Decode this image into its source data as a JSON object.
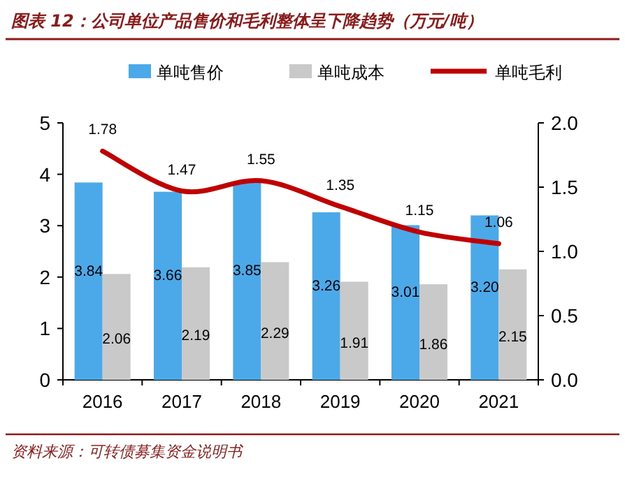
{
  "chart_data": {
    "type": "bar",
    "title": "图表 12：公司单位产品售价和毛利整体呈下降趋势（万元/吨）",
    "categories": [
      "2016",
      "2017",
      "2018",
      "2019",
      "2020",
      "2021"
    ],
    "series": [
      {
        "name": "单吨售价",
        "color": "#4ba9ea",
        "values": [
          3.84,
          3.66,
          3.85,
          3.26,
          3.01,
          3.2
        ],
        "value_labels": [
          "3.84",
          "3.66",
          "3.85",
          "3.26",
          "3.01",
          "3.20"
        ]
      },
      {
        "name": "单吨成本",
        "color": "#c9c9c9",
        "values": [
          2.06,
          2.19,
          2.29,
          1.91,
          1.86,
          2.15
        ],
        "value_labels": [
          "2.06",
          "2.19",
          "2.29",
          "1.91",
          "1.86",
          "2.15"
        ]
      },
      {
        "name": "单吨毛利",
        "type": "line",
        "axis": "y2",
        "color": "#c00000",
        "values": [
          1.78,
          1.47,
          1.55,
          1.35,
          1.15,
          1.06
        ],
        "value_labels": [
          "1.78",
          "1.47",
          "1.55",
          "1.35",
          "1.15",
          "1.06"
        ]
      }
    ],
    "ylim": [
      0,
      5
    ],
    "yticks": [
      0,
      1,
      2,
      3,
      4,
      5
    ],
    "y2lim": [
      0,
      2
    ],
    "y2ticks": [
      {
        "value": 0,
        "label": "0.0"
      },
      {
        "value": 0.5,
        "label": "0.5"
      },
      {
        "value": 1,
        "label": "1.0"
      },
      {
        "value": 1.5,
        "label": "1.5"
      },
      {
        "value": 2,
        "label": "2.0"
      }
    ],
    "legend": "top",
    "grid": false,
    "annotations": [
      "资料来源：可转债募集资金说明书"
    ]
  }
}
